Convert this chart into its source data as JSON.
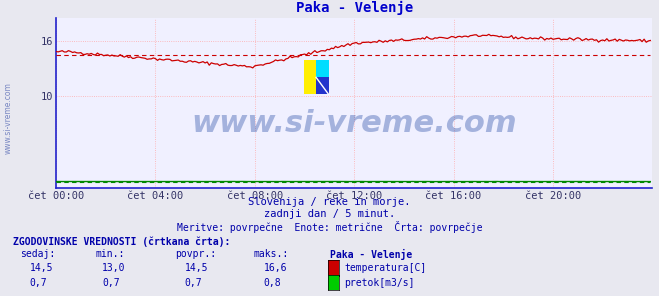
{
  "title": "Paka - Velenje",
  "title_color": "#0000cc",
  "bg_color": "#e8e8f0",
  "plot_bg_color": "#f0f0ff",
  "grid_color": "#ffaaaa",
  "grid_style": "dotted",
  "x_tick_labels": [
    "čet 00:00",
    "čet 04:00",
    "čet 08:00",
    "čet 12:00",
    "čet 16:00",
    "čet 20:00"
  ],
  "x_tick_positions": [
    0,
    48,
    96,
    144,
    192,
    240
  ],
  "y_ticks": [
    10,
    16
  ],
  "y_lim": [
    0,
    18.5
  ],
  "x_lim": [
    0,
    288
  ],
  "temp_color": "#cc0000",
  "flow_color": "#008800",
  "temp_min": 13.0,
  "temp_max": 16.6,
  "temp_avg": 14.5,
  "flow_min": 0.7,
  "flow_max": 0.8,
  "flow_avg": 0.7,
  "watermark": "www.si-vreme.com",
  "watermark_color": "#3355aa",
  "watermark_alpha": 0.4,
  "watermark_fontsize": 22,
  "logo_yellow": "#ffee00",
  "logo_cyan": "#00ddff",
  "logo_blue": "#2233cc",
  "sidebar_text": "www.si-vreme.com",
  "sidebar_color": "#6677bb",
  "subtitle1": "Slovenija / reke in morje.",
  "subtitle2": "zadnji dan / 5 minut.",
  "subtitle3": "Meritve: povrpečne  Enote: metrične  Črta: povrpečje",
  "subtitle_color": "#0000aa",
  "table_header": "ZGODOVINSKE VREDNOSTI (črtkana črta):",
  "col_headers": [
    "sedaj:",
    "min.:",
    "povpr.:",
    "maks.:",
    "Paka - Velenje"
  ],
  "row1": [
    "14,5",
    "13,0",
    "14,5",
    "16,6"
  ],
  "row2": [
    "0,7",
    "0,7",
    "0,7",
    "0,8"
  ],
  "row1_label": "temperatura[C]",
  "row2_label": "pretok[m3/s]",
  "row1_color": "#cc0000",
  "row2_color": "#00cc00",
  "axis_color": "#2222cc",
  "tick_color": "#333366"
}
